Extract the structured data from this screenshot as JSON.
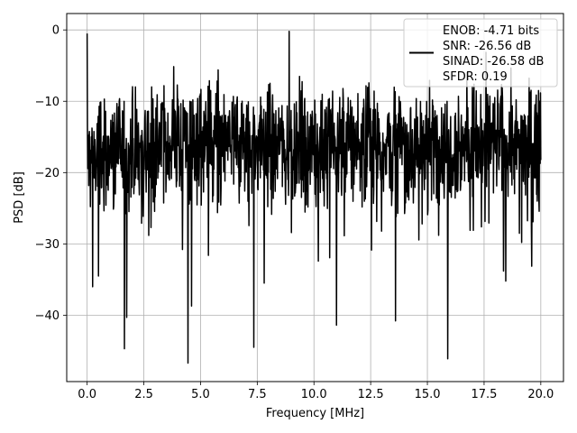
{
  "chart_data": {
    "type": "line",
    "title": "",
    "xlabel": "Frequency [MHz]",
    "ylabel": "PSD [dB]",
    "xlim": [
      -0.9,
      21.0
    ],
    "ylim": [
      -49.3,
      2.3
    ],
    "xticks": [
      0.0,
      2.5,
      5.0,
      7.5,
      10.0,
      12.5,
      15.0,
      17.5,
      20.0
    ],
    "xtick_labels": [
      "0.0",
      "2.5",
      "5.0",
      "7.5",
      "10.0",
      "12.5",
      "15.0",
      "17.5",
      "20.0"
    ],
    "yticks": [
      0,
      -10,
      -20,
      -30,
      -40
    ],
    "ytick_labels": [
      "0",
      "−10",
      "−20",
      "−30",
      "−40"
    ],
    "grid": true,
    "legend_position": "upper-right",
    "series": [
      {
        "color": "#000000",
        "x_start": 0.0,
        "x_end": 20.0,
        "mean_level_db": -16,
        "upper_envelope_db": -4,
        "lower_envelope_db": -28,
        "notable_points": [
          {
            "x": 0.0,
            "y": -0.5
          },
          {
            "x": 0.25,
            "y": -36.0
          },
          {
            "x": 0.5,
            "y": -34.5
          },
          {
            "x": 1.65,
            "y": -44.7
          },
          {
            "x": 1.75,
            "y": -40.3
          },
          {
            "x": 4.45,
            "y": -46.7
          },
          {
            "x": 4.6,
            "y": -38.7
          },
          {
            "x": 7.35,
            "y": -44.5
          },
          {
            "x": 7.8,
            "y": -35.5
          },
          {
            "x": 8.9,
            "y": -0.2
          },
          {
            "x": 11.0,
            "y": -41.4
          },
          {
            "x": 13.6,
            "y": -40.8
          },
          {
            "x": 15.9,
            "y": -46.1
          },
          {
            "x": 18.35,
            "y": -33.8
          },
          {
            "x": 19.9,
            "y": -8.5
          }
        ]
      }
    ],
    "legend_lines": [
      "ENOB: -4.71 bits",
      "SNR: -26.56 dB",
      "SINAD: -26.58 dB",
      "SFDR: 0.19"
    ],
    "colors": {
      "background": "#ffffff",
      "grid": "#b0b0b0",
      "line": "#000000",
      "axes": "#000000",
      "legend_frame": "#cccccc"
    }
  }
}
